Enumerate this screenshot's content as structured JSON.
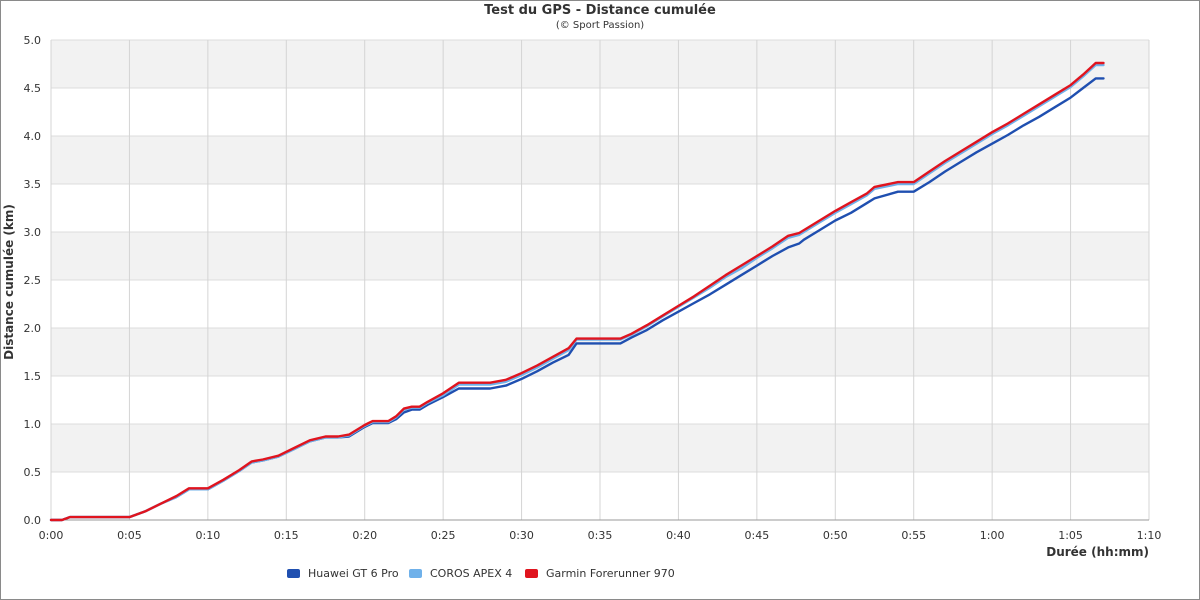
{
  "chart_data": {
    "type": "line",
    "title": "Test du GPS - Distance cumulée",
    "subtitle": "(© Sport Passion)",
    "xlabel": "Durée (hh:mm)",
    "ylabel": "Distance cumulée (km)",
    "xlim": [
      0,
      70
    ],
    "ylim": [
      0,
      5
    ],
    "x_ticks": [
      "0:00",
      "0:05",
      "0:10",
      "0:15",
      "0:20",
      "0:25",
      "0:30",
      "0:35",
      "0:40",
      "0:45",
      "0:50",
      "0:55",
      "1:00",
      "1:05",
      "1:10"
    ],
    "y_ticks": [
      "0.0",
      "0.5",
      "1.0",
      "1.5",
      "2.0",
      "2.5",
      "3.0",
      "3.5",
      "4.0",
      "4.5",
      "5.0"
    ],
    "grid": true,
    "legend_position": "bottom-left",
    "series": [
      {
        "name": "Huawei GT 6 Pro",
        "color": "#1f4fb0",
        "x": [
          0,
          0.7,
          1.2,
          2,
          5,
          6,
          7,
          8,
          8.8,
          10,
          11,
          12,
          12.8,
          13.5,
          14.5,
          15.5,
          16.5,
          17.5,
          18.3,
          19,
          20,
          20.5,
          21.5,
          22,
          22.5,
          23,
          23.5,
          24,
          25,
          26,
          28,
          29,
          30,
          31,
          32,
          33,
          33.5,
          36.3,
          37,
          38,
          39,
          40,
          41,
          42,
          43,
          44,
          45,
          46,
          47,
          47.7,
          48,
          49,
          50,
          51,
          52,
          52.5,
          54,
          55,
          56,
          57,
          58,
          59,
          60,
          61,
          62,
          63,
          64,
          65,
          65.8,
          66.6,
          67.1
        ],
        "y": [
          0,
          0,
          0.03,
          0.03,
          0.03,
          0.09,
          0.17,
          0.24,
          0.32,
          0.32,
          0.41,
          0.51,
          0.6,
          0.62,
          0.66,
          0.74,
          0.82,
          0.86,
          0.86,
          0.87,
          0.97,
          1.01,
          1.01,
          1.05,
          1.12,
          1.15,
          1.15,
          1.2,
          1.28,
          1.37,
          1.37,
          1.4,
          1.47,
          1.55,
          1.64,
          1.72,
          1.84,
          1.84,
          1.9,
          1.98,
          2.08,
          2.17,
          2.26,
          2.35,
          2.45,
          2.55,
          2.65,
          2.75,
          2.84,
          2.88,
          2.92,
          3.02,
          3.12,
          3.2,
          3.3,
          3.35,
          3.42,
          3.42,
          3.52,
          3.63,
          3.73,
          3.83,
          3.92,
          4.01,
          4.11,
          4.2,
          4.3,
          4.4,
          4.5,
          4.6,
          4.6
        ]
      },
      {
        "name": "COROS APEX 4",
        "color": "#6fb1ea",
        "x": [
          0,
          0.7,
          1.2,
          2,
          5,
          6,
          7,
          8,
          8.8,
          10,
          11,
          12,
          12.8,
          13.5,
          14.5,
          15.5,
          16.5,
          17.5,
          18.3,
          19,
          20,
          20.5,
          21.5,
          22,
          22.5,
          23,
          23.5,
          24,
          25,
          26,
          28,
          29,
          30,
          31,
          32,
          33,
          33.5,
          36.3,
          37,
          38,
          39,
          40,
          41,
          42,
          43,
          44,
          45,
          46,
          47,
          47.7,
          48,
          49,
          50,
          51,
          52,
          52.5,
          54,
          55,
          56,
          57,
          58,
          59,
          60,
          61,
          62,
          63,
          64,
          65,
          65.8,
          66.6,
          67.1
        ],
        "y": [
          0,
          0,
          0.03,
          0.03,
          0.03,
          0.09,
          0.17,
          0.24,
          0.32,
          0.32,
          0.41,
          0.51,
          0.6,
          0.62,
          0.66,
          0.74,
          0.82,
          0.86,
          0.86,
          0.88,
          0.98,
          1.02,
          1.02,
          1.07,
          1.15,
          1.17,
          1.17,
          1.22,
          1.3,
          1.41,
          1.41,
          1.44,
          1.51,
          1.59,
          1.68,
          1.77,
          1.88,
          1.88,
          1.93,
          2.02,
          2.12,
          2.22,
          2.32,
          2.42,
          2.53,
          2.62,
          2.73,
          2.83,
          2.94,
          2.97,
          3.0,
          3.1,
          3.2,
          3.29,
          3.38,
          3.45,
          3.5,
          3.5,
          3.61,
          3.72,
          3.82,
          3.92,
          4.02,
          4.11,
          4.21,
          4.31,
          4.41,
          4.51,
          4.62,
          4.74,
          4.74
        ]
      },
      {
        "name": "Garmin Forerunner 970",
        "color": "#e0141e",
        "x": [
          0,
          0.7,
          1.2,
          2,
          5,
          6,
          7,
          8,
          8.8,
          10,
          11,
          12,
          12.8,
          13.5,
          14.5,
          15.5,
          16.5,
          17.5,
          18.3,
          19,
          20,
          20.5,
          21.5,
          22,
          22.5,
          23,
          23.5,
          24,
          25,
          26,
          28,
          29,
          30,
          31,
          32,
          33,
          33.5,
          36.3,
          37,
          38,
          39,
          40,
          41,
          42,
          43,
          44,
          45,
          46,
          47,
          47.7,
          48,
          49,
          50,
          51,
          52,
          52.5,
          54,
          55,
          56,
          57,
          58,
          59,
          60,
          61,
          62,
          63,
          64,
          65,
          65.8,
          66.6,
          67.1
        ],
        "y": [
          0,
          0,
          0.03,
          0.03,
          0.03,
          0.09,
          0.17,
          0.25,
          0.33,
          0.33,
          0.42,
          0.52,
          0.61,
          0.63,
          0.67,
          0.75,
          0.83,
          0.87,
          0.87,
          0.89,
          0.99,
          1.03,
          1.03,
          1.08,
          1.16,
          1.18,
          1.18,
          1.23,
          1.32,
          1.43,
          1.43,
          1.46,
          1.53,
          1.61,
          1.7,
          1.79,
          1.89,
          1.89,
          1.94,
          2.03,
          2.13,
          2.23,
          2.33,
          2.44,
          2.55,
          2.65,
          2.75,
          2.85,
          2.96,
          2.99,
          3.02,
          3.12,
          3.22,
          3.31,
          3.4,
          3.47,
          3.52,
          3.52,
          3.63,
          3.74,
          3.84,
          3.94,
          4.04,
          4.13,
          4.23,
          4.33,
          4.43,
          4.53,
          4.64,
          4.76,
          4.76
        ]
      }
    ]
  }
}
